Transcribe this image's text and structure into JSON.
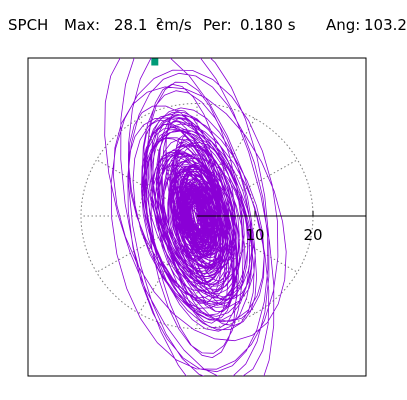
{
  "header": {
    "station": "SPCH",
    "max_label": "Max:",
    "max_value": "28.1",
    "max_unit": "cm/s",
    "max_unit_exp": "2",
    "per_label": "Per:",
    "per_value": "0.180 s",
    "ang_label": "Ang:",
    "ang_value": "103.2"
  },
  "chart_data": {
    "type": "polar particle-motion (hodogram)",
    "max_amplitude": 28.1,
    "amplitude_unit": "cm/s^2",
    "period_s": 0.18,
    "angle_deg": 103.2,
    "radial_ticks": [
      {
        "value": 10,
        "label": "10"
      },
      {
        "value": 20,
        "label": "20"
      }
    ],
    "rings": [
      10,
      20
    ],
    "spokes_deg": [
      0,
      30,
      60,
      90,
      120,
      150,
      180,
      210,
      240,
      270,
      300,
      330
    ],
    "colors": {
      "trace": "#8a00d6",
      "marker": "#009b77",
      "grid": "#7a7a7a",
      "frame": "#000000"
    },
    "grid": true
  }
}
